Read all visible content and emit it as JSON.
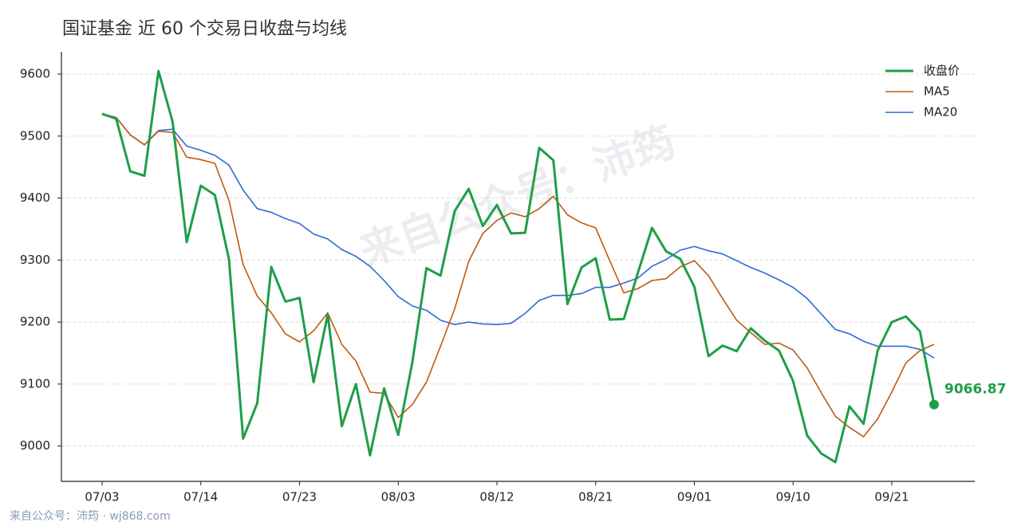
{
  "chart_data": {
    "type": "line",
    "title": "国证基金 近 60 个交易日收盘与均线",
    "watermark": "来自公众号：沛筠",
    "footer": "来自公众号：沛筠 · wj868.com",
    "categories": [
      "07/03",
      null,
      null,
      null,
      null,
      null,
      null,
      "07/14",
      null,
      null,
      null,
      null,
      null,
      null,
      "07/23",
      null,
      null,
      null,
      null,
      null,
      null,
      "08/03",
      null,
      null,
      null,
      null,
      null,
      null,
      "08/12",
      null,
      null,
      null,
      null,
      null,
      null,
      "08/21",
      null,
      null,
      null,
      null,
      null,
      null,
      "09/01",
      null,
      null,
      null,
      null,
      null,
      null,
      "09/10",
      null,
      null,
      null,
      null,
      null,
      null,
      "09/21",
      null,
      null,
      null
    ],
    "ylim": [
      8943,
      9636
    ],
    "yticks": [
      9000,
      9100,
      9200,
      9300,
      9400,
      9500,
      9600
    ],
    "grid": true,
    "legend": "upper right",
    "series": [
      {
        "name": "收盘价",
        "color": "#1f9e48",
        "width": 3,
        "values": [
          9536,
          9528,
          9443,
          9436,
          9605,
          9523,
          9329,
          9420,
          9405,
          9301,
          9012,
          9069,
          9289,
          9233,
          9239,
          9103,
          9212,
          9032,
          9100,
          8985,
          9093,
          9018,
          9135,
          9287,
          9275,
          9379,
          9415,
          9355,
          9389,
          9343,
          9344,
          9481,
          9461,
          9229,
          9288,
          9303,
          9204,
          9205,
          9280,
          9352,
          9314,
          9302,
          9257,
          9145,
          9162,
          9153,
          9190,
          9170,
          9154,
          9105,
          9017,
          8988,
          8974,
          9064,
          9036,
          9154,
          9200,
          9209,
          9185,
          9066.87
        ]
      },
      {
        "name": "MA5",
        "color": "#bf5a12",
        "width": 1.6,
        "values": [
          9535,
          9530,
          9502,
          9486,
          9508,
          9506,
          9466,
          9462,
          9456,
          9396,
          9293,
          9242,
          9215,
          9181,
          9168,
          9186,
          9215,
          9164,
          9137,
          9087,
          9085,
          9046,
          9067,
          9103,
          9161,
          9221,
          9298,
          9343,
          9364,
          9376,
          9370,
          9383,
          9403,
          9373,
          9360,
          9352,
          9299,
          9247,
          9254,
          9267,
          9270,
          9289,
          9299,
          9275,
          9238,
          9203,
          9183,
          9164,
          9166,
          9155,
          9126,
          9086,
          9048,
          9030,
          9015,
          9044,
          9087,
          9134,
          9154,
          9164
        ]
      },
      {
        "name": "MA20",
        "color": "#2e68d8",
        "width": 1.6,
        "values": [
          9536,
          9530,
          9502,
          9486,
          9509,
          9511,
          9484,
          9477,
          9469,
          9453,
          9413,
          9383,
          9377,
          9367,
          9359,
          9342,
          9334,
          9317,
          9306,
          9290,
          9267,
          9241,
          9226,
          9219,
          9203,
          9196,
          9200,
          9197,
          9196,
          9198,
          9214,
          9235,
          9243,
          9243,
          9246,
          9256,
          9256,
          9263,
          9271,
          9290,
          9301,
          9316,
          9322,
          9315,
          9310,
          9299,
          9288,
          9279,
          9268,
          9256,
          9238,
          9213,
          9188,
          9181,
          9169,
          9161,
          9161,
          9161,
          9156,
          9142
        ]
      }
    ]
  }
}
